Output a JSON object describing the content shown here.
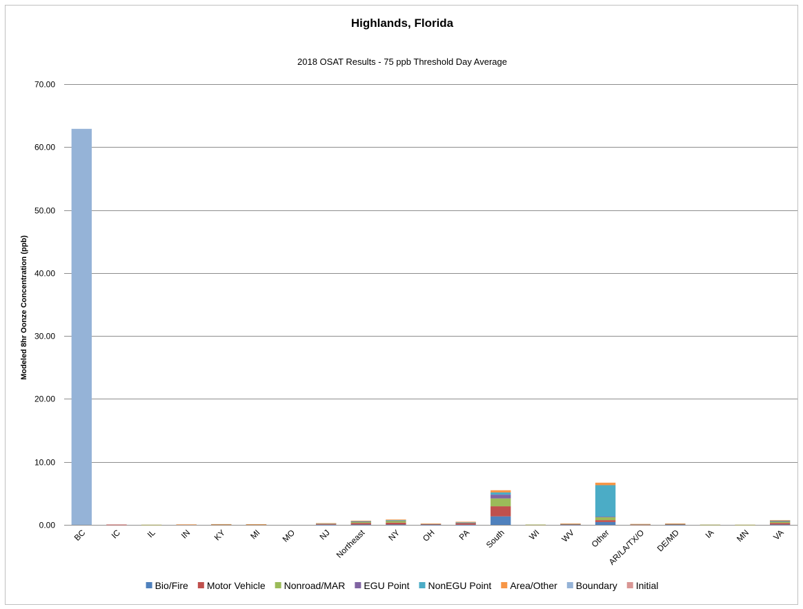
{
  "chart_data": {
    "type": "bar",
    "stacked": true,
    "title": "Highlands, Florida",
    "subtitle": "2018 OSAT Results - 75 ppb Threshold Day Average",
    "ylabel": "Modeled 8hr Oonze Concentration (ppb)",
    "xlabel": "",
    "ylim": [
      0,
      70
    ],
    "yticks": [
      "0.00",
      "10.00",
      "20.00",
      "30.00",
      "40.00",
      "50.00",
      "60.00",
      "70.00"
    ],
    "ytick_values": [
      0,
      10,
      20,
      30,
      40,
      50,
      60,
      70
    ],
    "grid": true,
    "legend_position": "bottom",
    "categories": [
      "BC",
      "IC",
      "IL",
      "IN",
      "KY",
      "MI",
      "MO",
      "NJ",
      "Northeast",
      "NY",
      "OH",
      "PA",
      "South",
      "WI",
      "WV",
      "Other",
      "AR/LA/TX/O",
      "DE/MD",
      "IA",
      "MN",
      "VA"
    ],
    "series": [
      {
        "name": "Bio/Fire",
        "color": "#4f81bd",
        "values": [
          0,
          0,
          0,
          0,
          0,
          0,
          0,
          0.02,
          0.05,
          0.05,
          0.02,
          0.02,
          1.35,
          0,
          0.02,
          0.45,
          0,
          0.02,
          0,
          0,
          0.05
        ]
      },
      {
        "name": "Motor Vehicle",
        "color": "#c0504d",
        "values": [
          0,
          0.03,
          0.01,
          0.02,
          0.03,
          0.03,
          0,
          0.08,
          0.25,
          0.3,
          0.06,
          0.25,
          1.6,
          0.02,
          0.05,
          0.3,
          0.05,
          0.06,
          0.02,
          0.01,
          0.25
        ]
      },
      {
        "name": "Nonroad/MAR",
        "color": "#9bbb59",
        "values": [
          0,
          0,
          0.01,
          0.02,
          0.03,
          0.03,
          0,
          0.1,
          0.2,
          0.3,
          0.06,
          0.06,
          1.25,
          0.02,
          0.05,
          0.45,
          0.03,
          0.05,
          0.01,
          0.01,
          0.25
        ]
      },
      {
        "name": "EGU Point",
        "color": "#8064a2",
        "values": [
          0,
          0,
          0,
          0.01,
          0.02,
          0.02,
          0,
          0.02,
          0.04,
          0.05,
          0.02,
          0.03,
          0.6,
          0,
          0.04,
          0.1,
          0.02,
          0.04,
          0,
          0,
          0.05
        ]
      },
      {
        "name": "NonEGU Point",
        "color": "#4bacc6",
        "values": [
          0,
          0,
          0,
          0.01,
          0.02,
          0.01,
          0,
          0.02,
          0.05,
          0.05,
          0.02,
          0.04,
          0.35,
          0,
          0.03,
          5.0,
          0.02,
          0.02,
          0,
          0,
          0.1
        ]
      },
      {
        "name": "Area/Other",
        "color": "#f79646",
        "values": [
          0,
          0,
          0,
          0.01,
          0.02,
          0.02,
          0,
          0.03,
          0.08,
          0.1,
          0.03,
          0.1,
          0.35,
          0,
          0.02,
          0.4,
          0.02,
          0.03,
          0,
          0,
          0.05
        ]
      },
      {
        "name": "Boundary",
        "color": "#95b3d7",
        "values": [
          62.9,
          0,
          0,
          0,
          0,
          0,
          0,
          0,
          0,
          0,
          0,
          0,
          0,
          0,
          0,
          0,
          0,
          0,
          0,
          0,
          0
        ]
      },
      {
        "name": "Initial",
        "color": "#d99694",
        "values": [
          0,
          0.05,
          0,
          0,
          0,
          0,
          0,
          0,
          0,
          0,
          0,
          0,
          0,
          0,
          0,
          0,
          0,
          0,
          0,
          0,
          0
        ]
      }
    ]
  }
}
